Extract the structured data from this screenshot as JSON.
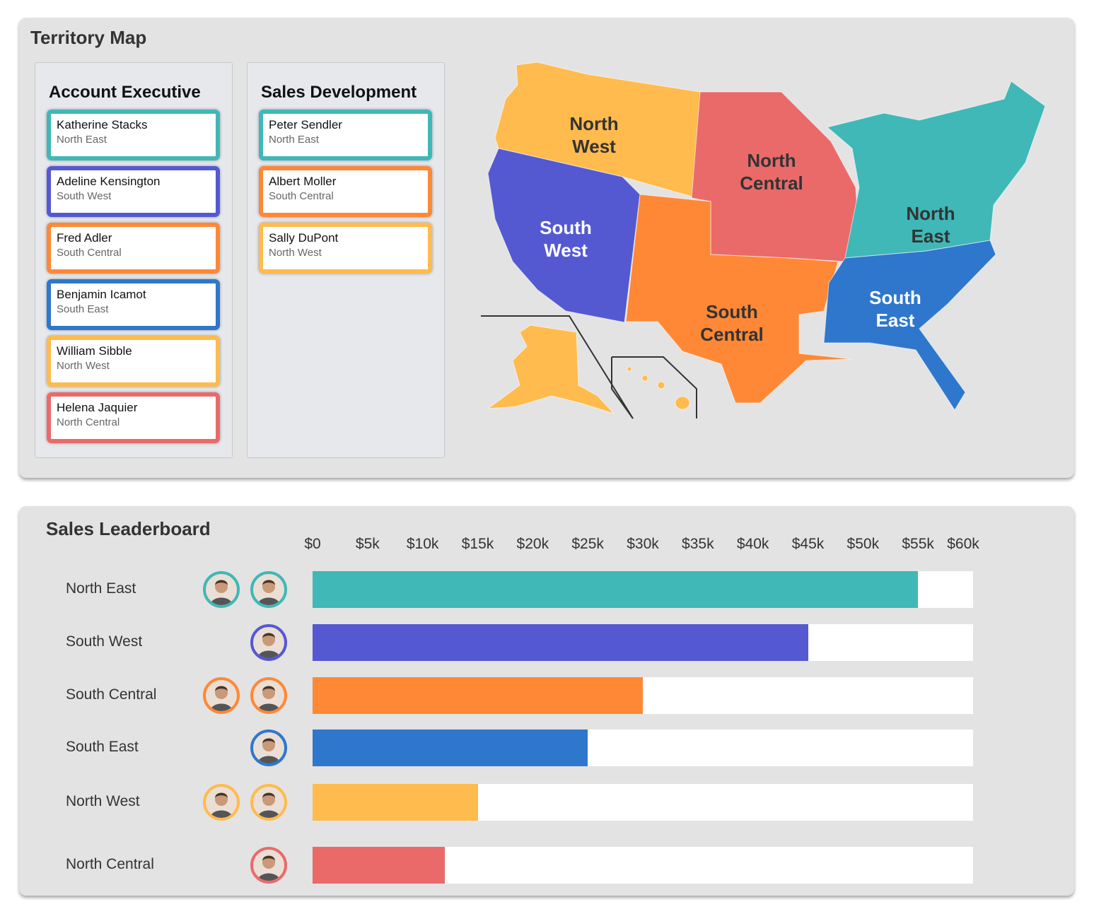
{
  "territory": {
    "title": "Territory Map",
    "account_executive": {
      "heading": "Account Executive",
      "cards": [
        {
          "name": "Katherine Stacks",
          "region": "North East",
          "color": "#3fb8b7"
        },
        {
          "name": "Adeline Kensington",
          "region": "South West",
          "color": "#5459d2"
        },
        {
          "name": "Fred Adler",
          "region": "South Central",
          "color": "#ff8836"
        },
        {
          "name": "Benjamin Icamot",
          "region": "South East",
          "color": "#2f77cc"
        },
        {
          "name": "William Sibble",
          "region": "North West",
          "color": "#ffbb4d"
        },
        {
          "name": "Helena Jaquier",
          "region": "North Central",
          "color": "#ea6a6a"
        }
      ]
    },
    "sales_development": {
      "heading": "Sales Development",
      "cards": [
        {
          "name": "Peter Sendler",
          "region": "North East",
          "color": "#3fb8b7"
        },
        {
          "name": "Albert Moller",
          "region": "South Central",
          "color": "#ff8836"
        },
        {
          "name": "Sally DuPont",
          "region": "North West",
          "color": "#ffbb4d"
        }
      ]
    },
    "map_labels": {
      "north_west": [
        "North",
        "West"
      ],
      "south_west": [
        "South",
        "West"
      ],
      "north_central": [
        "North",
        "Central"
      ],
      "south_central": [
        "South",
        "Central"
      ],
      "north_east": [
        "North",
        "East"
      ],
      "south_east": [
        "South",
        "East"
      ]
    }
  },
  "leaderboard": {
    "title": "Sales Leaderboard",
    "ticks": [
      "$0",
      "$5k",
      "$10k",
      "$15k",
      "$20k",
      "$25k",
      "$30k",
      "$35k",
      "$40k",
      "$45k",
      "$50k",
      "$55k",
      "$60k"
    ]
  },
  "chart_data": {
    "type": "bar",
    "title": "Sales Leaderboard",
    "orientation": "horizontal",
    "categories": [
      "North East",
      "South West",
      "South Central",
      "South East",
      "North West",
      "North Central"
    ],
    "values": [
      55000,
      45000,
      30000,
      25000,
      15000,
      12000
    ],
    "colors": [
      "#3fb8b7",
      "#5459d2",
      "#ff8836",
      "#2f77cc",
      "#ffbb4d",
      "#ea6a6a"
    ],
    "avatars": [
      2,
      1,
      2,
      1,
      2,
      1
    ],
    "xlim": [
      0,
      60000
    ],
    "xlabel": "",
    "ylabel": ""
  }
}
